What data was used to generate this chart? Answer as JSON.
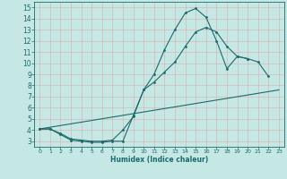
{
  "xlabel": "Humidex (Indice chaleur)",
  "xlim": [
    -0.5,
    23.5
  ],
  "ylim": [
    2.5,
    15.5
  ],
  "yticks": [
    3,
    4,
    5,
    6,
    7,
    8,
    9,
    10,
    11,
    12,
    13,
    14,
    15
  ],
  "xticks": [
    0,
    1,
    2,
    3,
    4,
    5,
    6,
    7,
    8,
    9,
    10,
    11,
    12,
    13,
    14,
    15,
    16,
    17,
    18,
    19,
    20,
    21,
    22,
    23
  ],
  "bg_color": "#c5e8e5",
  "grid_color": "#ddeeed",
  "line_color": "#1a6b6b",
  "line1_x": [
    0,
    1,
    2,
    3,
    4,
    5,
    6,
    7,
    8,
    9,
    10,
    11,
    12,
    13,
    14,
    15,
    16,
    17,
    18,
    19,
    20,
    21,
    22
  ],
  "line1_y": [
    4.1,
    4.1,
    3.6,
    3.1,
    3.0,
    2.9,
    2.9,
    3.0,
    3.0,
    5.3,
    7.6,
    9.0,
    11.2,
    13.0,
    14.5,
    14.9,
    14.1,
    12.0,
    9.5,
    10.6,
    10.4,
    10.1,
    8.8
  ],
  "line2_x": [
    0,
    1,
    2,
    3,
    4,
    5,
    6,
    7,
    8,
    9,
    10,
    11,
    12,
    13,
    14,
    15,
    16,
    17,
    18,
    19,
    20
  ],
  "line2_y": [
    4.1,
    4.1,
    3.7,
    3.2,
    3.1,
    3.0,
    3.0,
    3.1,
    4.0,
    5.2,
    7.6,
    8.3,
    9.2,
    10.1,
    11.5,
    12.8,
    13.2,
    12.8,
    11.5,
    10.6,
    10.4
  ],
  "line3_x": [
    0,
    23
  ],
  "line3_y": [
    4.1,
    7.6
  ]
}
